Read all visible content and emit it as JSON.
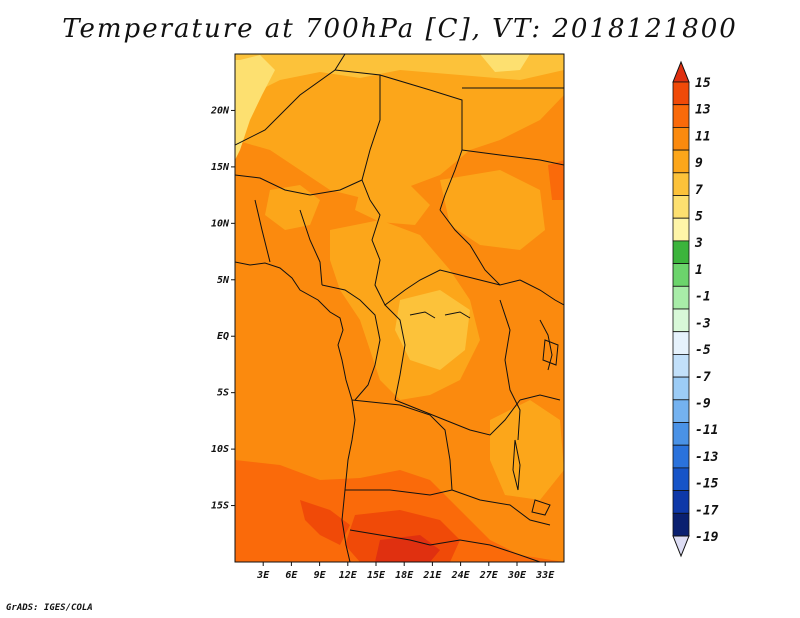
{
  "title": "Temperature at 700hPa [C], VT: 2018121800",
  "credit": "GrADS: IGES/COLA",
  "map": {
    "lon_range": [
      0,
      35
    ],
    "lat_range": [
      -20,
      25
    ],
    "x_ticks": [
      "3E",
      "6E",
      "9E",
      "12E",
      "15E",
      "18E",
      "21E",
      "24E",
      "27E",
      "30E",
      "33E"
    ],
    "x_tick_values": [
      3,
      6,
      9,
      12,
      15,
      18,
      21,
      24,
      27,
      30,
      33
    ],
    "y_ticks": [
      "20N",
      "15N",
      "10N",
      "5N",
      "EQ",
      "5S",
      "10S",
      "15S"
    ],
    "y_tick_values": [
      20,
      15,
      10,
      5,
      0,
      -5,
      -10,
      -15
    ]
  },
  "colorbar": {
    "labels": [
      "15",
      "13",
      "11",
      "9",
      "7",
      "5",
      "3",
      "1",
      "-1",
      "-3",
      "-5",
      "-7",
      "-9",
      "-11",
      "-13",
      "-15",
      "-17",
      "-19"
    ],
    "colors": [
      "#e03010",
      "#f04a08",
      "#fa6a0a",
      "#fb8a0e",
      "#fca61a",
      "#fcc23a",
      "#fde070",
      "#fef5a8",
      "#3cb43c",
      "#6cd46c",
      "#a8eca8",
      "#d8f8d8",
      "#e6f2fc",
      "#c2e0fa",
      "#9cccf6",
      "#74b2f0",
      "#4a92e6",
      "#2a72dc",
      "#1654c8",
      "#0e38a8",
      "#0a2070",
      "#ddddf4"
    ]
  }
}
